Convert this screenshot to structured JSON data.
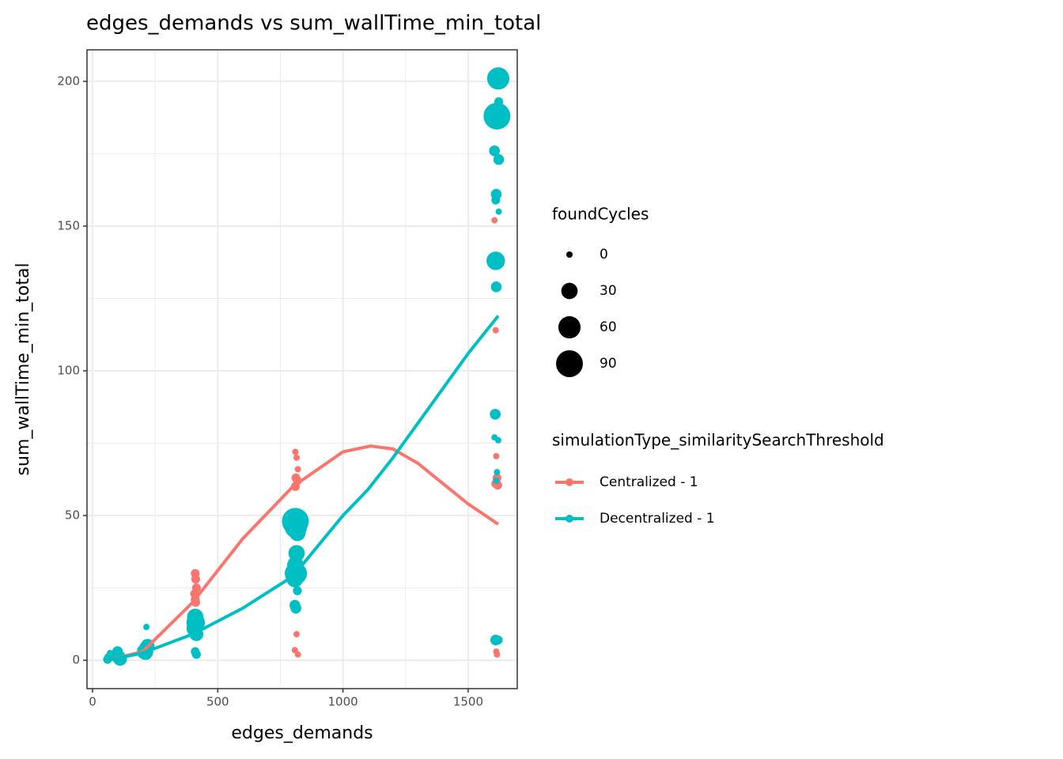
{
  "chart_data": {
    "type": "scatter",
    "title": "edges_demands  vs  sum_wallTime_min_total",
    "x_label": "edges_demands",
    "y_label": "sum_wallTime_min_total",
    "xlim": [
      -22,
      1696
    ],
    "ylim": [
      -9.8,
      210.9
    ],
    "xticks": [
      0,
      500,
      1000,
      1500
    ],
    "yticks": [
      0,
      50,
      100,
      150,
      200
    ],
    "x_minor_ticks": [
      250,
      750,
      1250
    ],
    "y_minor_ticks": [
      25,
      75,
      125,
      175
    ],
    "grid": true,
    "size_legend": {
      "title": "foundCycles",
      "values": [
        0,
        30,
        60,
        90
      ]
    },
    "color_legend_title": "simulationType_similaritySearchThreshold",
    "series": [
      {
        "name": "Centralized - 1",
        "color": "#F8766D",
        "x": [
          1605,
          1610,
          1612,
          1615,
          1610,
          1618,
          1612,
          1615,
          810,
          815,
          820,
          812,
          818,
          810,
          815,
          808,
          820,
          410,
          412,
          415,
          408,
          410,
          412,
          210,
          215,
          60
        ],
        "values": [
          152,
          114,
          70.5,
          63,
          61,
          60.5,
          3,
          2,
          72,
          70,
          66,
          63,
          62,
          60,
          9,
          3.5,
          2,
          30,
          28,
          25,
          23,
          21,
          20,
          5,
          3,
          0.5
        ],
        "sizes": [
          0,
          0,
          0,
          5,
          5,
          5,
          0,
          0,
          0,
          0,
          0,
          5,
          5,
          5,
          0,
          0,
          0,
          5,
          5,
          5,
          5,
          5,
          5,
          5,
          5,
          0
        ],
        "smooth_x": [
          60,
          200,
          400,
          600,
          800,
          1000,
          1110,
          1200,
          1300,
          1400,
          1500,
          1620
        ],
        "smooth_values": [
          0,
          3,
          20,
          42,
          60,
          72,
          74,
          73,
          68,
          61,
          54,
          47
        ]
      },
      {
        "name": "Decentralized - 1",
        "color": "#00BFC4",
        "x": [
          1620,
          1622,
          1615,
          1605,
          1622,
          1612,
          1610,
          1622,
          1610,
          1612,
          1608,
          1605,
          1620,
          1615,
          1612,
          1610,
          1620,
          810,
          812,
          818,
          815,
          810,
          812,
          808,
          818,
          808,
          812,
          410,
          412,
          408,
          415,
          410,
          415,
          215,
          220,
          212,
          210,
          215,
          100,
          105,
          110,
          60,
          65,
          70
        ],
        "values": [
          201,
          193,
          188,
          176,
          173,
          161,
          159,
          155,
          138,
          129,
          85,
          77,
          76,
          65,
          62,
          7,
          7,
          48,
          46,
          44,
          37,
          33,
          30,
          28,
          24,
          19,
          18,
          15,
          13,
          11,
          9,
          3,
          2,
          11.5,
          5,
          4,
          3,
          2,
          3,
          1,
          0.5,
          0.3,
          1,
          2.5
        ],
        "sizes": [
          60,
          5,
          90,
          10,
          10,
          10,
          5,
          0,
          40,
          10,
          10,
          0,
          0,
          0,
          0,
          10,
          5,
          90,
          60,
          30,
          30,
          30,
          60,
          30,
          5,
          10,
          10,
          30,
          40,
          30,
          20,
          5,
          5,
          0,
          20,
          20,
          30,
          10,
          10,
          20,
          20,
          5,
          5,
          0
        ],
        "smooth_x": [
          60,
          200,
          400,
          600,
          800,
          1000,
          1100,
          1200,
          1300,
          1400,
          1500,
          1620
        ],
        "smooth_values": [
          0,
          2.5,
          9,
          18,
          29,
          50,
          59,
          70,
          82,
          94,
          106,
          119
        ]
      }
    ]
  }
}
